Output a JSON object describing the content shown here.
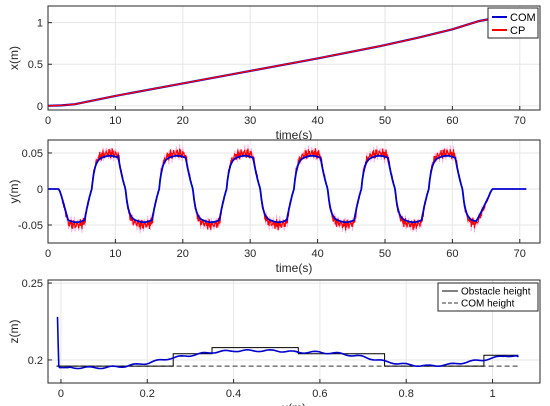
{
  "chart_data": [
    {
      "type": "line",
      "xlabel": "time(s)",
      "ylabel": "x(m)",
      "xlim": [
        0,
        73
      ],
      "ylim": [
        -0.05,
        1.2
      ],
      "xticks": [
        0,
        10,
        20,
        30,
        40,
        50,
        60,
        70
      ],
      "yticks": [
        0,
        0.5,
        1
      ],
      "ytick_labels": [
        "0",
        "0.5",
        "1"
      ],
      "grid": true,
      "legend_position": "top-right",
      "series": [
        {
          "name": "COM",
          "color": "#0000cc",
          "x": [
            0,
            2,
            4,
            10,
            20,
            30,
            40,
            50,
            55,
            60,
            64,
            66,
            68,
            70
          ],
          "y": [
            0,
            0.005,
            0.02,
            0.12,
            0.27,
            0.42,
            0.57,
            0.73,
            0.82,
            0.92,
            1.02,
            1.05,
            1.05,
            1.05
          ]
        },
        {
          "name": "CP",
          "color": "#ff0000",
          "x": [
            0,
            2,
            4,
            10,
            20,
            30,
            40,
            50,
            55,
            60,
            64,
            66,
            68,
            70
          ],
          "y": [
            0,
            0.005,
            0.02,
            0.12,
            0.27,
            0.42,
            0.57,
            0.73,
            0.82,
            0.92,
            1.02,
            1.05,
            1.05,
            1.05
          ]
        }
      ]
    },
    {
      "type": "line",
      "xlabel": "time(s)",
      "ylabel": "y(m)",
      "xlim": [
        0,
        73
      ],
      "ylim": [
        -0.075,
        0.068
      ],
      "xticks": [
        0,
        10,
        20,
        30,
        40,
        50,
        60,
        70
      ],
      "yticks": [
        -0.05,
        0,
        0.05
      ],
      "ytick_labels": [
        "-0.05",
        "0",
        "0.05"
      ],
      "grid": true,
      "start_time": 1.5,
      "end_time": 66.0,
      "step_period": 5.0,
      "amplitude": 0.045,
      "series": [
        {
          "name": "COM",
          "color": "#0000cc"
        },
        {
          "name": "CP",
          "color": "#ff0000"
        }
      ]
    },
    {
      "type": "line",
      "xlabel": "x(m)",
      "ylabel": "z(m)",
      "xlim": [
        -0.03,
        1.11
      ],
      "ylim": [
        0.185,
        0.252
      ],
      "xticks": [
        0,
        0.2,
        0.4,
        0.6,
        0.8,
        1
      ],
      "xtick_labels": [
        "0",
        "0.2",
        "0.4",
        "0.6",
        "0.8",
        "1"
      ],
      "yticks": [
        0.2,
        0.25
      ],
      "ytick_labels": [
        "0.2",
        "0.25"
      ],
      "grid": true,
      "legend_position": "top-right",
      "series": [
        {
          "name": "Obstacle height",
          "style": "solid",
          "color": "#000000",
          "x": [
            -0.01,
            0.26,
            0.26,
            0.35,
            0.35,
            0.55,
            0.55,
            0.75,
            0.75,
            0.98,
            0.98,
            1.06
          ],
          "y": [
            0.196,
            0.196,
            0.204,
            0.204,
            0.208,
            0.208,
            0.204,
            0.204,
            0.196,
            0.196,
            0.203,
            0.203
          ]
        },
        {
          "name": "COM height",
          "style": "dashed",
          "color": "#333333",
          "x": [
            -0.01,
            1.06
          ],
          "y": [
            0.196,
            0.196
          ]
        },
        {
          "name": "",
          "style": "solid",
          "color": "#0000cc",
          "x": [
            -0.008,
            -0.005,
            -0.003,
            0.0,
            0.05,
            0.1,
            0.15,
            0.2,
            0.25,
            0.3,
            0.35,
            0.4,
            0.45,
            0.5,
            0.55,
            0.6,
            0.65,
            0.7,
            0.75,
            0.8,
            0.85,
            0.9,
            0.95,
            1.0,
            1.03,
            1.06
          ],
          "y": [
            0.228,
            0.196,
            0.195,
            0.195,
            0.195,
            0.195,
            0.196,
            0.198,
            0.201,
            0.203,
            0.205,
            0.206,
            0.206,
            0.206,
            0.205,
            0.205,
            0.204,
            0.202,
            0.199,
            0.197,
            0.196,
            0.197,
            0.199,
            0.201,
            0.203,
            0.202
          ]
        }
      ]
    }
  ]
}
